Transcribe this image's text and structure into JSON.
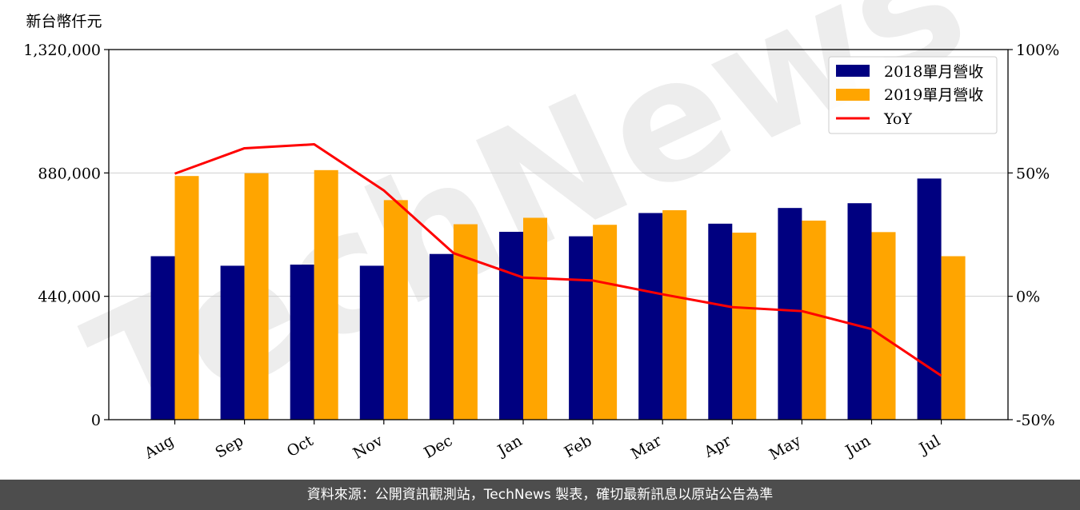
{
  "chart_data": {
    "type": "bar",
    "unit_label": "新台幣仟元",
    "categories": [
      "Aug",
      "Sep",
      "Oct",
      "Nov",
      "Dec",
      "Jan",
      "Feb",
      "Mar",
      "Apr",
      "May",
      "Jun",
      "Jul"
    ],
    "series": [
      {
        "name": "2018單月營收",
        "kind": "bar",
        "axis": "left",
        "color": "#000080",
        "values": [
          583000,
          549000,
          553000,
          549000,
          591000,
          670000,
          654000,
          737000,
          699000,
          755000,
          772000,
          860000
        ]
      },
      {
        "name": "2019單月營收",
        "kind": "bar",
        "axis": "left",
        "color": "#FFA500",
        "values": [
          869000,
          879000,
          890000,
          783000,
          697000,
          720000,
          695000,
          747000,
          667000,
          710000,
          669000,
          583000
        ]
      },
      {
        "name": "YoY",
        "kind": "line",
        "axis": "right",
        "color": "#FF0000",
        "values": [
          49.7,
          60.0,
          61.6,
          42.9,
          17.5,
          7.6,
          6.4,
          0.8,
          -4.4,
          -6.0,
          -13.3,
          -32.2
        ]
      }
    ],
    "left_axis": {
      "ylim": [
        0,
        1320000
      ],
      "ticks": [
        "0",
        "440,000",
        "880,000",
        "1,320,000"
      ]
    },
    "right_axis": {
      "ylim": [
        -50,
        100
      ],
      "ticks": [
        "-50%",
        "0%",
        "50%",
        "100%"
      ]
    },
    "grid": "horizontal",
    "legend_position": "top-right",
    "watermark": "TechNews"
  },
  "footer": {
    "text": "資料來源：公開資訊觀測站，TechNews 製表，確切最新訊息以原站公告為準"
  }
}
